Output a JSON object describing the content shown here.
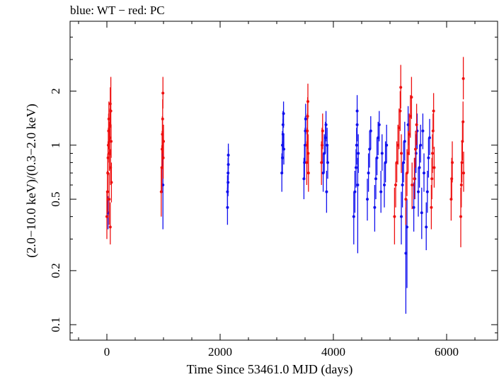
{
  "chart_data": {
    "type": "scatter",
    "title": "blue: WT − red: PC",
    "xlabel": "Time Since 53461.0 MJD (days)",
    "ylabel": "(2.0−10.0 keV)/(0.3−2.0 keV)",
    "xlim": [
      -650,
      6900
    ],
    "ylim": [
      0.082,
      4.9
    ],
    "yscale": "log",
    "xticks": [
      0,
      2000,
      4000,
      6000
    ],
    "yticks": [
      0.1,
      0.2,
      0.5,
      1,
      2
    ],
    "ytick_labels": [
      "0.1",
      "0.2",
      "0.5",
      "1",
      "2"
    ],
    "error_bars": true,
    "series": [
      {
        "color": "#1010ee",
        "points": [
          [
            20,
            0.42,
            0.34,
            0.52
          ],
          [
            990,
            0.6,
            0.34,
            0.9
          ],
          [
            2130,
            0.45,
            0.36,
            0.58
          ],
          [
            2130,
            0.55,
            0.46,
            0.68
          ],
          [
            2140,
            0.62,
            0.52,
            0.76
          ],
          [
            2140,
            0.7,
            0.58,
            0.85
          ],
          [
            2145,
            0.78,
            0.64,
            0.95
          ],
          [
            2145,
            0.88,
            0.74,
            1.02
          ],
          [
            3090,
            0.7,
            0.55,
            0.9
          ],
          [
            3100,
            0.85,
            0.7,
            1.05
          ],
          [
            3100,
            1.0,
            0.85,
            1.2
          ],
          [
            3110,
            1.15,
            0.95,
            1.4
          ],
          [
            3110,
            1.3,
            1.1,
            1.55
          ],
          [
            3120,
            1.5,
            1.25,
            1.75
          ],
          [
            3125,
            0.95,
            0.78,
            1.15
          ],
          [
            3480,
            0.65,
            0.5,
            0.85
          ],
          [
            3490,
            0.8,
            0.65,
            1.0
          ],
          [
            3500,
            1.0,
            0.8,
            1.25
          ],
          [
            3505,
            1.2,
            1.0,
            1.45
          ],
          [
            3510,
            1.4,
            1.15,
            1.7
          ],
          [
            3820,
            0.7,
            0.55,
            0.9
          ],
          [
            3840,
            0.9,
            0.7,
            1.15
          ],
          [
            3860,
            1.1,
            0.9,
            1.35
          ],
          [
            3870,
            1.3,
            1.05,
            1.55
          ],
          [
            3880,
            0.55,
            0.42,
            0.72
          ],
          [
            3890,
            1.0,
            0.8,
            1.25
          ],
          [
            3900,
            0.8,
            0.65,
            1.0
          ],
          [
            4360,
            0.4,
            0.28,
            0.55
          ],
          [
            4380,
            0.55,
            0.42,
            0.72
          ],
          [
            4400,
            0.75,
            0.58,
            0.95
          ],
          [
            4410,
            1.0,
            0.78,
            1.25
          ],
          [
            4420,
            1.3,
            1.05,
            1.6
          ],
          [
            4420,
            1.55,
            1.25,
            1.9
          ],
          [
            4430,
            0.6,
            0.25,
            0.85
          ],
          [
            4440,
            0.9,
            0.7,
            1.15
          ],
          [
            4600,
            0.5,
            0.38,
            0.65
          ],
          [
            4620,
            0.7,
            0.55,
            0.9
          ],
          [
            4640,
            0.95,
            0.75,
            1.2
          ],
          [
            4660,
            1.2,
            0.95,
            1.45
          ],
          [
            4730,
            0.45,
            0.33,
            0.6
          ],
          [
            4750,
            0.65,
            0.5,
            0.85
          ],
          [
            4770,
            0.85,
            0.68,
            1.1
          ],
          [
            4790,
            1.1,
            0.88,
            1.35
          ],
          [
            4810,
            1.3,
            1.05,
            1.55
          ],
          [
            4840,
            0.55,
            0.42,
            0.72
          ],
          [
            4860,
            0.9,
            0.72,
            1.15
          ],
          [
            4900,
            0.6,
            0.45,
            0.8
          ],
          [
            4920,
            0.8,
            0.62,
            1.05
          ],
          [
            4940,
            1.0,
            0.8,
            1.3
          ],
          [
            5200,
            0.4,
            0.28,
            0.55
          ],
          [
            5220,
            0.6,
            0.45,
            0.8
          ],
          [
            5240,
            0.8,
            0.62,
            1.05
          ],
          [
            5260,
            1.05,
            0.82,
            1.35
          ],
          [
            5280,
            0.25,
            0.115,
            0.45
          ],
          [
            5300,
            0.35,
            0.16,
            0.5
          ],
          [
            5320,
            1.3,
            1.0,
            1.65
          ],
          [
            5420,
            0.45,
            0.33,
            0.62
          ],
          [
            5440,
            0.65,
            0.5,
            0.85
          ],
          [
            5460,
            0.9,
            0.7,
            1.15
          ],
          [
            5480,
            1.2,
            0.95,
            1.5
          ],
          [
            5500,
            0.55,
            0.4,
            0.75
          ],
          [
            5520,
            0.75,
            0.58,
            1.0
          ],
          [
            5540,
            1.0,
            0.8,
            1.3
          ],
          [
            5560,
            0.42,
            0.3,
            0.58
          ],
          [
            5580,
            1.2,
            0.95,
            1.5
          ],
          [
            5600,
            0.7,
            0.55,
            0.9
          ],
          [
            5640,
            0.35,
            0.26,
            0.48
          ],
          [
            5660,
            0.55,
            0.42,
            0.72
          ],
          [
            5680,
            0.85,
            0.66,
            1.1
          ],
          [
            5700,
            1.1,
            0.88,
            1.4
          ]
        ]
      },
      {
        "color": "#ee1010",
        "points": [
          [
            0,
            0.4,
            0.3,
            0.55
          ],
          [
            10,
            0.55,
            0.42,
            0.72
          ],
          [
            15,
            0.7,
            0.55,
            0.9
          ],
          [
            20,
            0.85,
            0.68,
            1.05
          ],
          [
            25,
            1.0,
            0.8,
            1.25
          ],
          [
            30,
            1.2,
            0.95,
            1.5
          ],
          [
            35,
            1.4,
            1.1,
            1.75
          ],
          [
            40,
            0.5,
            0.36,
            0.7
          ],
          [
            45,
            0.9,
            0.72,
            1.12
          ],
          [
            50,
            1.1,
            0.88,
            1.35
          ],
          [
            55,
            1.3,
            1.05,
            1.6
          ],
          [
            60,
            1.7,
            1.3,
            2.1
          ],
          [
            60,
            0.35,
            0.28,
            0.48
          ],
          [
            65,
            0.75,
            0.6,
            0.95
          ],
          [
            70,
            1.55,
            1.25,
            2.4
          ],
          [
            75,
            1.05,
            0.85,
            1.3
          ],
          [
            80,
            0.62,
            0.48,
            0.8
          ],
          [
            960,
            0.55,
            0.4,
            0.75
          ],
          [
            970,
            0.75,
            0.55,
            1.0
          ],
          [
            975,
            0.95,
            0.75,
            1.2
          ],
          [
            980,
            1.15,
            0.9,
            1.45
          ],
          [
            985,
            1.4,
            1.1,
            1.8
          ],
          [
            990,
            1.95,
            1.6,
            2.4
          ],
          [
            995,
            0.85,
            0.65,
            1.1
          ],
          [
            1000,
            1.05,
            0.85,
            1.3
          ],
          [
            3530,
            0.8,
            0.6,
            1.05
          ],
          [
            3535,
            1.0,
            0.8,
            1.25
          ],
          [
            3540,
            1.2,
            0.95,
            1.5
          ],
          [
            3545,
            1.45,
            1.15,
            1.85
          ],
          [
            3550,
            1.75,
            1.4,
            2.2
          ],
          [
            3555,
            0.9,
            0.7,
            1.15
          ],
          [
            3560,
            0.7,
            0.55,
            0.9
          ],
          [
            3790,
            0.8,
            0.6,
            1.05
          ],
          [
            3800,
            1.0,
            0.8,
            1.25
          ],
          [
            3810,
            1.2,
            0.95,
            1.5
          ],
          [
            5080,
            0.4,
            0.28,
            0.58
          ],
          [
            5100,
            0.6,
            0.45,
            0.8
          ],
          [
            5120,
            0.8,
            0.62,
            1.05
          ],
          [
            5140,
            1.0,
            0.78,
            1.3
          ],
          [
            5160,
            1.25,
            0.95,
            1.6
          ],
          [
            5180,
            1.55,
            1.2,
            2.0
          ],
          [
            5190,
            2.1,
            1.6,
            2.8
          ],
          [
            5200,
            0.9,
            0.7,
            1.15
          ],
          [
            5280,
            0.5,
            0.36,
            0.7
          ],
          [
            5300,
            0.7,
            0.52,
            0.95
          ],
          [
            5320,
            0.9,
            0.7,
            1.2
          ],
          [
            5340,
            1.15,
            0.88,
            1.5
          ],
          [
            5360,
            1.45,
            1.1,
            1.9
          ],
          [
            5380,
            1.85,
            1.4,
            2.4
          ],
          [
            5390,
            0.6,
            0.44,
            0.8
          ],
          [
            5430,
            0.65,
            0.5,
            0.85
          ],
          [
            5450,
            0.95,
            0.75,
            1.2
          ],
          [
            5470,
            1.3,
            1.0,
            1.7
          ],
          [
            5730,
            0.45,
            0.34,
            0.6
          ],
          [
            5740,
            0.65,
            0.5,
            0.85
          ],
          [
            5750,
            0.9,
            0.7,
            1.15
          ],
          [
            5760,
            1.2,
            0.95,
            1.5
          ],
          [
            5770,
            1.55,
            1.2,
            1.95
          ],
          [
            5780,
            0.75,
            0.58,
            0.98
          ],
          [
            6080,
            0.5,
            0.38,
            0.66
          ],
          [
            6090,
            0.65,
            0.5,
            0.85
          ],
          [
            6100,
            0.8,
            0.62,
            1.05
          ],
          [
            6250,
            0.4,
            0.27,
            0.58
          ],
          [
            6260,
            0.6,
            0.45,
            0.8
          ],
          [
            6270,
            0.8,
            0.62,
            1.05
          ],
          [
            6280,
            1.05,
            0.82,
            1.35
          ],
          [
            6290,
            1.35,
            1.05,
            1.75
          ],
          [
            6295,
            2.35,
            1.8,
            3.1
          ],
          [
            6300,
            0.7,
            0.55,
            0.92
          ]
        ]
      }
    ]
  }
}
